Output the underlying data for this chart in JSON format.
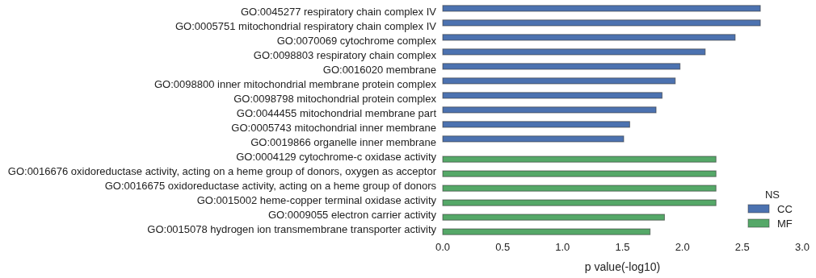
{
  "chart_data": {
    "type": "bar",
    "orientation": "horizontal",
    "xlabel": "p value(-log10)",
    "legend_title": "NS",
    "legend": "bottom right",
    "grid": false,
    "categories": [
      "GO:0045277 respiratory chain complex IV",
      "GO:0005751 mitochondrial respiratory chain complex IV",
      "GO:0070069 cytochrome complex",
      "GO:0098803 respiratory chain complex",
      "GO:0016020 membrane",
      "GO:0098800 inner mitochondrial membrane protein complex",
      "GO:0098798 mitochondrial protein complex",
      "GO:0044455 mitochondrial membrane part",
      "GO:0005743 mitochondrial inner membrane",
      "GO:0019866 organelle inner membrane",
      "GO:0004129 cytochrome-c oxidase activity",
      "GO:0016676 oxidoreductase activity, acting on a heme group of donors, oxygen as acceptor",
      "GO:0016675 oxidoreductase activity, acting on a heme group of donors",
      "GO:0015002 heme-copper terminal oxidase activity",
      "GO:0009055 electron carrier activity",
      "GO:0015078 hydrogen ion transmembrane transporter activity"
    ],
    "series": [
      {
        "name": "CC",
        "color": "#4c72b0",
        "values": [
          2.65,
          2.65,
          2.44,
          2.19,
          1.98,
          1.94,
          1.83,
          1.78,
          1.56,
          1.51,
          null,
          null,
          null,
          null,
          null,
          null
        ]
      },
      {
        "name": "MF",
        "color": "#55a868",
        "values": [
          null,
          null,
          null,
          null,
          null,
          null,
          null,
          null,
          null,
          null,
          2.28,
          2.28,
          2.28,
          2.28,
          1.85,
          1.73
        ]
      }
    ],
    "xlim": [
      0,
      3
    ],
    "xticks": [
      {
        "value": 0,
        "label": "0.0"
      },
      {
        "value": 0.5,
        "label": "0.5"
      },
      {
        "value": 1,
        "label": "1.0"
      },
      {
        "value": 1.5,
        "label": "1.5"
      },
      {
        "value": 2,
        "label": "2.0"
      },
      {
        "value": 2.5,
        "label": "2.5"
      },
      {
        "value": 3,
        "label": "3.0"
      }
    ]
  }
}
